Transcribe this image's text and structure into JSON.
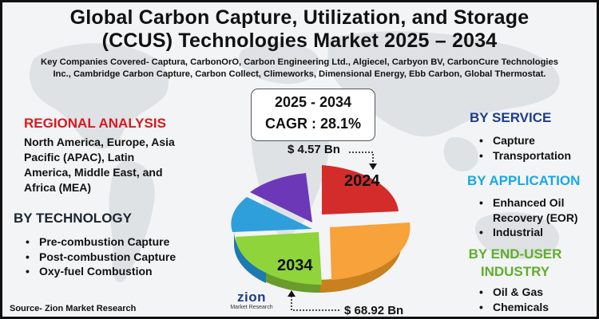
{
  "header": {
    "title_line1": "Global Carbon Capture, Utilization, and Storage",
    "title_line2": "(CCUS) Technologies Market 2025 – 2034",
    "companies_line1": "Key Companies Covered- Captura, CarbonOrO, Carbon Engineering Ltd., Algiecel, Carbyon BV, CarbonCure Technologies",
    "companies_line2": "Inc., Cambridge Carbon Capture, Carbon Collect, Climeworks, Dimensional Energy, Ebb Carbon, Global Thermostat."
  },
  "highlight": {
    "years": "2025 - 2034",
    "cagr": "CAGR : 28.1%"
  },
  "chart": {
    "value_start": "$ 4.57 Bn",
    "value_end": "$ 68.92 Bn",
    "label_start": "2024",
    "label_end": "2034",
    "slices": [
      {
        "color": "#d42b2b"
      },
      {
        "color": "#f7a23a"
      },
      {
        "color": "#8fd43a"
      },
      {
        "color": "#2f9fdc"
      },
      {
        "color": "#6d38b7"
      }
    ]
  },
  "regional": {
    "heading": "REGIONAL ANALYSIS",
    "line1": "North America, Europe, Asia",
    "line2": "Pacific (APAC), Latin",
    "line3": "America, Middle East, and",
    "line4": "Africa (MEA)"
  },
  "technology": {
    "heading": "BY TECHNOLOGY",
    "items": [
      "Pre-combustion Capture",
      "Post-combustion Capture",
      "Oxy-fuel Combustion"
    ]
  },
  "service": {
    "heading": "BY SERVICE",
    "items": [
      "Capture",
      "Transportation"
    ]
  },
  "application": {
    "heading": "BY APPLICATION",
    "item1_line1": "Enhanced Oil",
    "item1_line2": "Recovery (EOR)",
    "item2": "Industrial"
  },
  "end_user": {
    "heading_line1": "BY END-USER",
    "heading_line2": "INDUSTRY",
    "items": [
      "Oil & Gas",
      "Chemicals"
    ]
  },
  "footer": {
    "source": "Source- Zion Market Research",
    "logo_main": "zion",
    "logo_sub": "Market Research"
  },
  "colors": {
    "accent_red": "#d7191f",
    "accent_blue": "#1f3d86",
    "accent_cyan": "#18a8e6",
    "accent_green": "#61ad2e"
  }
}
